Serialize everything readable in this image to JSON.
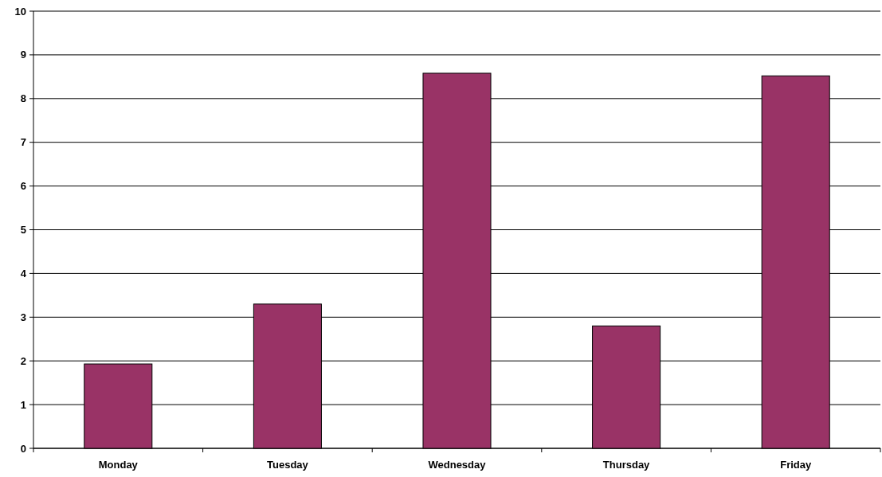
{
  "chart_data": {
    "type": "bar",
    "categories": [
      "Monday",
      "Tuesday",
      "Wednesday",
      "Thursday",
      "Friday"
    ],
    "values": [
      1.93,
      3.3,
      8.58,
      2.8,
      8.52
    ],
    "color": "#993366",
    "ylim": [
      0,
      10
    ],
    "yticks": [
      0,
      1,
      2,
      3,
      4,
      5,
      6,
      7,
      8,
      9,
      10
    ],
    "grid": "y"
  }
}
